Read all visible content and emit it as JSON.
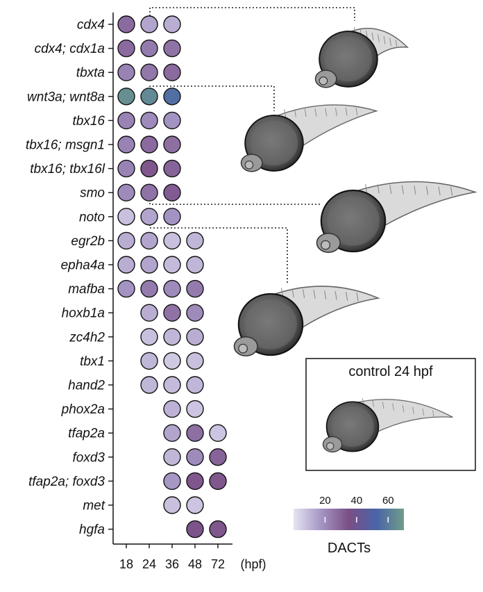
{
  "chart_data": {
    "type": "dot-matrix",
    "x_axis": {
      "categories": [
        "18",
        "24",
        "36",
        "48",
        "72"
      ],
      "unit_label": "(hpf)"
    },
    "colorbar": {
      "label": "DACTs",
      "range": [
        0,
        70
      ],
      "ticks": [
        20,
        40,
        60
      ],
      "colors": [
        "#e6e4f2",
        "#a495c4",
        "#7a4f86",
        "#4a64a8",
        "#6f9c8a"
      ]
    },
    "rows": [
      {
        "gene": "cdx4",
        "values": {
          "18": 28,
          "24": 14,
          "36": 12
        }
      },
      {
        "gene": "cdx4; cdx1a",
        "values": {
          "18": 28,
          "24": 24,
          "36": 26
        }
      },
      {
        "gene": "tbxta",
        "values": {
          "18": 22,
          "24": 25,
          "36": 28
        }
      },
      {
        "gene": "wnt3a; wnt8a",
        "values": {
          "18": 66,
          "24": 64,
          "36": 56
        }
      },
      {
        "gene": "tbx16",
        "values": {
          "18": 22,
          "24": 20,
          "36": 18
        }
      },
      {
        "gene": "tbx16; msgn1",
        "values": {
          "18": 22,
          "24": 28,
          "36": 27
        }
      },
      {
        "gene": "tbx16; tbx16l",
        "values": {
          "18": 22,
          "24": 33,
          "36": 30
        }
      },
      {
        "gene": "smo",
        "values": {
          "18": 20,
          "24": 26,
          "36": 32
        }
      },
      {
        "gene": "noto",
        "values": {
          "18": 8,
          "24": 14,
          "36": 18
        }
      },
      {
        "gene": "egr2b",
        "values": {
          "18": 12,
          "24": 14,
          "36": 8,
          "48": 10
        }
      },
      {
        "gene": "epha4a",
        "values": {
          "18": 12,
          "24": 14,
          "36": 9,
          "48": 10
        }
      },
      {
        "gene": "mafba",
        "values": {
          "18": 18,
          "24": 24,
          "36": 20,
          "48": 24
        }
      },
      {
        "gene": "hoxb1a",
        "values": {
          "24": 12,
          "36": 26,
          "48": 20
        }
      },
      {
        "gene": "zc4h2",
        "values": {
          "24": 8,
          "36": 10,
          "48": 12
        }
      },
      {
        "gene": "tbx1",
        "values": {
          "24": 10,
          "36": 6,
          "48": 8
        }
      },
      {
        "gene": "hand2",
        "values": {
          "24": 10,
          "36": 9,
          "48": 10
        }
      },
      {
        "gene": "phox2a",
        "values": {
          "36": 11,
          "48": 7
        }
      },
      {
        "gene": "tfap2a",
        "values": {
          "36": 14,
          "48": 27,
          "72": 7
        }
      },
      {
        "gene": "foxd3",
        "values": {
          "36": 10,
          "48": 20,
          "72": 30
        }
      },
      {
        "gene": "tfap2a; foxd3",
        "values": {
          "36": 17,
          "48": 33,
          "72": 33
        }
      },
      {
        "gene": "met",
        "values": {
          "36": 8,
          "48": 7
        }
      },
      {
        "gene": "hgfa",
        "values": {
          "48": 34,
          "72": 33
        }
      }
    ]
  },
  "panels": {
    "control_label": "control 24 hpf"
  }
}
